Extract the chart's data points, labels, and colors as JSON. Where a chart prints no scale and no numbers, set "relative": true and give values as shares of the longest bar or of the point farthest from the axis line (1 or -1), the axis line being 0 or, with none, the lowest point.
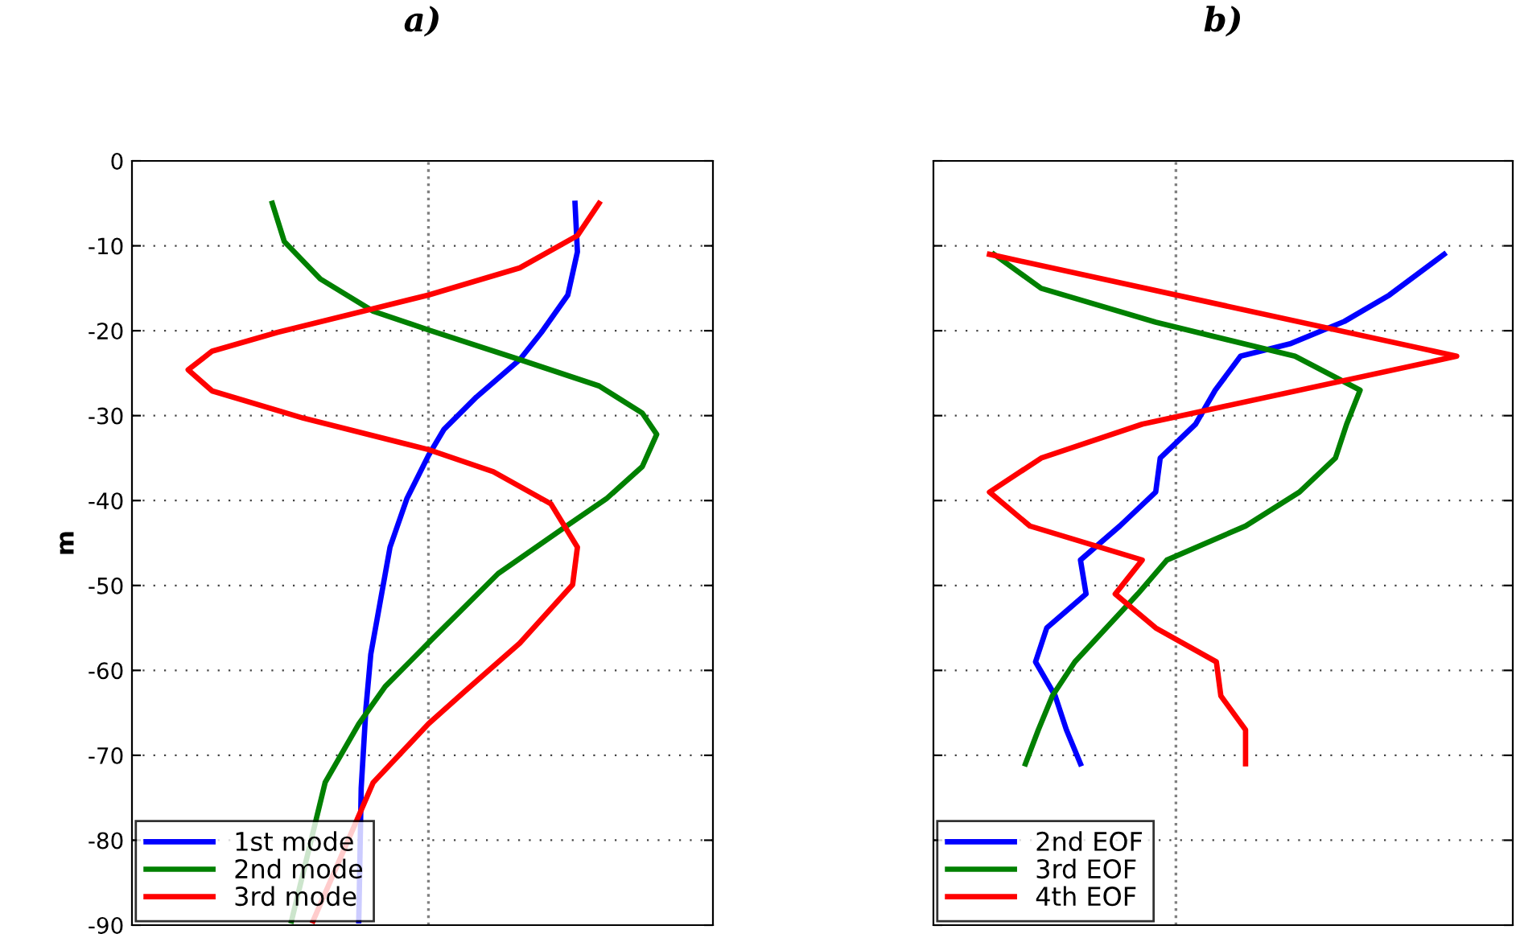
{
  "chart_data": [
    {
      "type": "line",
      "title": "a)",
      "ylabel": "m",
      "orientation": "horizontal",
      "relative": true,
      "ylim": [
        -90,
        0
      ],
      "yticks": [
        -90,
        -80,
        -70,
        -60,
        -50,
        -40,
        -30,
        -20,
        -10,
        0
      ],
      "grid": "y",
      "legend": "bottom left",
      "line_style": "solid",
      "marker": "none",
      "ref_lines": [
        {
          "axis": "x",
          "value": 0,
          "color": "#808080",
          "line_style": "dotted"
        }
      ],
      "series": [
        {
          "name": "1st mode",
          "color": "#0000ff",
          "values": [
            0.61,
            0.62,
            0.58,
            0.47,
            0.38,
            0.2,
            0.065,
            0,
            -0.09,
            -0.16,
            -0.2,
            -0.24,
            -0.26,
            -0.28,
            -0.29
          ],
          "x": [
            -5,
            -10.7,
            -15.8,
            -20.2,
            -23.4,
            -27.8,
            -31.6,
            -34.7,
            -39.8,
            -45.5,
            -51.8,
            -58.1,
            -64.4,
            -73.9,
            -89.5
          ]
        },
        {
          "name": "2nd mode",
          "color": "#008000",
          "values": [
            -0.65,
            -0.6,
            -0.45,
            -0.23,
            0,
            0.38,
            0.71,
            0.89,
            0.95,
            0.89,
            0.74,
            0.58,
            0.29,
            0.02,
            -0.18,
            -0.29,
            -0.43,
            -0.57
          ],
          "x": [
            -5,
            -9.5,
            -13.9,
            -17.7,
            -19.9,
            -23.4,
            -26.5,
            -29.7,
            -32.2,
            -36,
            -39.8,
            -42.9,
            -48.6,
            -56.2,
            -61.9,
            -66.3,
            -73.2,
            -89.5
          ]
        },
        {
          "name": "3rd mode",
          "color": "#ff0000",
          "values": [
            0.71,
            0.62,
            0.38,
            0,
            -0.23,
            -0.63,
            -0.9,
            -1,
            -0.9,
            -0.52,
            0,
            0.27,
            0.51,
            0.62,
            0.6,
            0.38,
            0.15,
            0,
            -0.23,
            -0.48
          ],
          "x": [
            -5,
            -8.8,
            -12.6,
            -15.8,
            -17.4,
            -20.2,
            -22.4,
            -24.6,
            -27.1,
            -30.3,
            -34,
            -36.6,
            -40.4,
            -45.5,
            -49.9,
            -56.8,
            -62.5,
            -66.3,
            -73.2,
            -89.5
          ]
        }
      ]
    },
    {
      "type": "line",
      "title": "b)",
      "orientation": "horizontal",
      "relative": true,
      "ylim": [
        -90,
        0
      ],
      "yticks": [
        -90,
        -80,
        -70,
        -60,
        -50,
        -40,
        -30,
        -20,
        -10,
        0
      ],
      "tick_labels": false,
      "grid": "y",
      "legend": "bottom left",
      "line_style": "solid",
      "marker": "none",
      "ref_lines": [
        {
          "axis": "x",
          "value": 0,
          "color": "#808080",
          "line_style": "dotted"
        }
      ],
      "series": [
        {
          "name": "2nd EOF",
          "color": "#0000ff",
          "values": [
            0.955,
            0.76,
            0.6,
            0.41,
            0.23,
            0.14,
            0.07,
            -0.056,
            -0.072,
            -0.2,
            -0.34,
            -0.32,
            -0.46,
            -0.5,
            -0.43,
            -0.39,
            -0.34
          ],
          "x": [
            -11,
            -15.8,
            -18.9,
            -21.5,
            -23,
            -27,
            -31,
            -35,
            -39,
            -43,
            -47,
            -51,
            -55,
            -59,
            -63,
            -67,
            -71
          ]
        },
        {
          "name": "3rd EOF",
          "color": "#008000",
          "values": [
            -0.648,
            -0.48,
            -0.072,
            0.424,
            0.656,
            0.608,
            0.568,
            0.44,
            0.248,
            -0.032,
            -0.136,
            -0.248,
            -0.36,
            -0.44,
            -0.49,
            -0.536
          ],
          "x": [
            -11,
            -15,
            -19,
            -23,
            -27,
            -31,
            -35,
            -39,
            -43,
            -47,
            -51,
            -55,
            -59,
            -63,
            -67,
            -71
          ]
        },
        {
          "name": "4th EOF",
          "color": "#ff0000",
          "values": [
            -0.664,
            1.0,
            -0.12,
            -0.48,
            -0.664,
            -0.52,
            -0.12,
            -0.216,
            -0.072,
            0.144,
            0.16,
            0.248,
            0.248
          ],
          "x": [
            -11,
            -23,
            -31,
            -35,
            -39,
            -43,
            -47,
            -51,
            -55,
            -59,
            -63,
            -67,
            -71
          ]
        }
      ]
    }
  ]
}
